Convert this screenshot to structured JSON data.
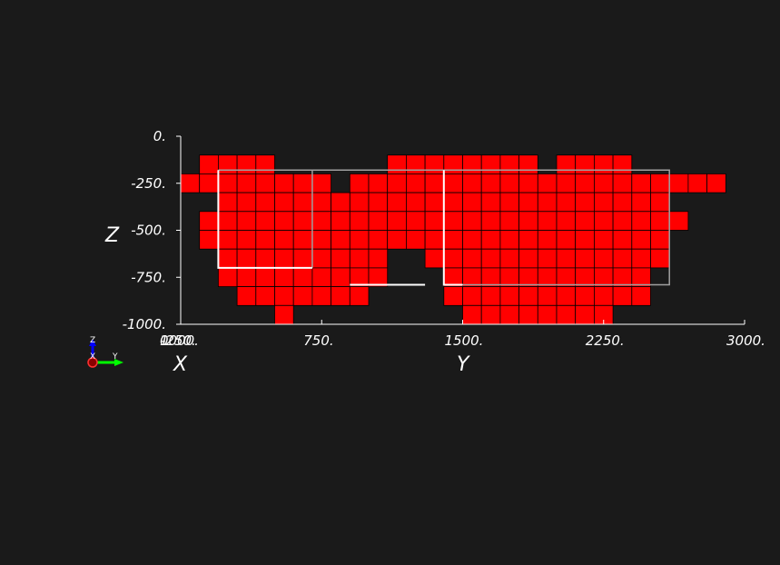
{
  "colors": {
    "background": "#1a1a1a",
    "cell_fill": "#ff0000",
    "cell_edge": "#000000",
    "axis": "#ffffff",
    "outline_gray": "#a0a0a0",
    "outline_white": "#ffffff",
    "triad_z": "#0000ff",
    "triad_y": "#00ff00",
    "triad_x": "#ff0000"
  },
  "chart_data": {
    "type": "heatmap",
    "title": "",
    "xlabel": "Y",
    "ylabel": "Z",
    "depth_label": "X",
    "xlim": [
      0,
      3000
    ],
    "ylim": [
      -1000,
      0
    ],
    "x_ticks": [
      {
        "value": 750,
        "label": "750."
      },
      {
        "value": 1500,
        "label": "1500."
      },
      {
        "value": 2250,
        "label": "2250."
      },
      {
        "value": 3000,
        "label": "3000."
      }
    ],
    "x_origin_label": "1000.",
    "x_origin_overlap_label": "-250.",
    "depth_origin_label": "0.",
    "y_ticks": [
      {
        "value": 0,
        "label": "0."
      },
      {
        "value": -250,
        "label": "-250."
      },
      {
        "value": -500,
        "label": "-500."
      },
      {
        "value": -750,
        "label": "-750."
      },
      {
        "value": -1000,
        "label": "-1000."
      }
    ],
    "cell_size": {
      "dy": 100,
      "dz": 100
    },
    "cell_columns": [
      {
        "y": 0,
        "z_tops": [
          -200
        ]
      },
      {
        "y": 100,
        "z_tops": [
          -100,
          -200,
          -400,
          -500
        ]
      },
      {
        "y": 200,
        "z_tops": [
          -100,
          -200,
          -300,
          -400,
          -500,
          -600,
          -700
        ]
      },
      {
        "y": 300,
        "z_tops": [
          -100,
          -200,
          -300,
          -400,
          -500,
          -600,
          -700,
          -800
        ]
      },
      {
        "y": 400,
        "z_tops": [
          -100,
          -200,
          -300,
          -400,
          -500,
          -600,
          -700,
          -800
        ]
      },
      {
        "y": 500,
        "z_tops": [
          -200,
          -300,
          -400,
          -500,
          -600,
          -700,
          -800,
          -900
        ]
      },
      {
        "y": 600,
        "z_tops": [
          -200,
          -300,
          -400,
          -500,
          -600,
          -700,
          -800
        ]
      },
      {
        "y": 700,
        "z_tops": [
          -200,
          -300,
          -400,
          -500,
          -600,
          -700,
          -800
        ]
      },
      {
        "y": 800,
        "z_tops": [
          -300,
          -400,
          -500,
          -600,
          -700,
          -800
        ]
      },
      {
        "y": 900,
        "z_tops": [
          -200,
          -300,
          -400,
          -500,
          -600,
          -700,
          -800
        ]
      },
      {
        "y": 1000,
        "z_tops": [
          -200,
          -300,
          -400,
          -500,
          -600,
          -700
        ]
      },
      {
        "y": 1100,
        "z_tops": [
          -100,
          -200,
          -300,
          -400,
          -500
        ]
      },
      {
        "y": 1200,
        "z_tops": [
          -100,
          -200,
          -300,
          -400,
          -500
        ]
      },
      {
        "y": 1300,
        "z_tops": [
          -100,
          -200,
          -300,
          -400,
          -500,
          -600
        ]
      },
      {
        "y": 1400,
        "z_tops": [
          -100,
          -200,
          -300,
          -400,
          -500,
          -600,
          -700,
          -800
        ]
      },
      {
        "y": 1500,
        "z_tops": [
          -100,
          -200,
          -300,
          -400,
          -500,
          -600,
          -700,
          -800,
          -900
        ]
      },
      {
        "y": 1600,
        "z_tops": [
          -100,
          -200,
          -300,
          -400,
          -500,
          -600,
          -700,
          -800,
          -900
        ]
      },
      {
        "y": 1700,
        "z_tops": [
          -100,
          -200,
          -300,
          -400,
          -500,
          -600,
          -700,
          -800,
          -900
        ]
      },
      {
        "y": 1800,
        "z_tops": [
          -100,
          -200,
          -300,
          -400,
          -500,
          -600,
          -700,
          -800,
          -900
        ]
      },
      {
        "y": 1900,
        "z_tops": [
          -200,
          -300,
          -400,
          -500,
          -600,
          -700,
          -800,
          -900
        ]
      },
      {
        "y": 2000,
        "z_tops": [
          -100,
          -200,
          -300,
          -400,
          -500,
          -600,
          -700,
          -800,
          -900
        ]
      },
      {
        "y": 2100,
        "z_tops": [
          -100,
          -200,
          -300,
          -400,
          -500,
          -600,
          -700,
          -800,
          -900
        ]
      },
      {
        "y": 2200,
        "z_tops": [
          -100,
          -200,
          -300,
          -400,
          -500,
          -600,
          -700,
          -800,
          -900
        ]
      },
      {
        "y": 2300,
        "z_tops": [
          -100,
          -200,
          -300,
          -400,
          -500,
          -600,
          -700,
          -800
        ]
      },
      {
        "y": 2400,
        "z_tops": [
          -200,
          -300,
          -400,
          -500,
          -600,
          -700,
          -800
        ]
      },
      {
        "y": 2500,
        "z_tops": [
          -200,
          -300,
          -400,
          -500,
          -600
        ]
      },
      {
        "y": 2600,
        "z_tops": [
          -200,
          -400
        ]
      },
      {
        "y": 2700,
        "z_tops": [
          -200
        ]
      },
      {
        "y": 2800,
        "z_tops": [
          -200
        ]
      }
    ],
    "outlines": [
      {
        "kind": "gray",
        "points": [
          [
            200,
            -180
          ],
          [
            2600,
            -180
          ],
          [
            2600,
            -790
          ],
          [
            1400,
            -790
          ]
        ]
      },
      {
        "kind": "gray",
        "points": [
          [
            700,
            -180
          ],
          [
            700,
            -700
          ]
        ]
      },
      {
        "kind": "white",
        "points": [
          [
            200,
            -180
          ],
          [
            200,
            -700
          ],
          [
            700,
            -700
          ]
        ]
      },
      {
        "kind": "white",
        "points": [
          [
            1400,
            -180
          ],
          [
            1400,
            -790
          ],
          [
            1500,
            -790
          ]
        ]
      },
      {
        "kind": "white",
        "points": [
          [
            900,
            -790
          ],
          [
            1300,
            -790
          ]
        ]
      }
    ]
  },
  "orientation_triad": {
    "z_label": "Z",
    "x_label": "X",
    "y_label": "Y"
  }
}
